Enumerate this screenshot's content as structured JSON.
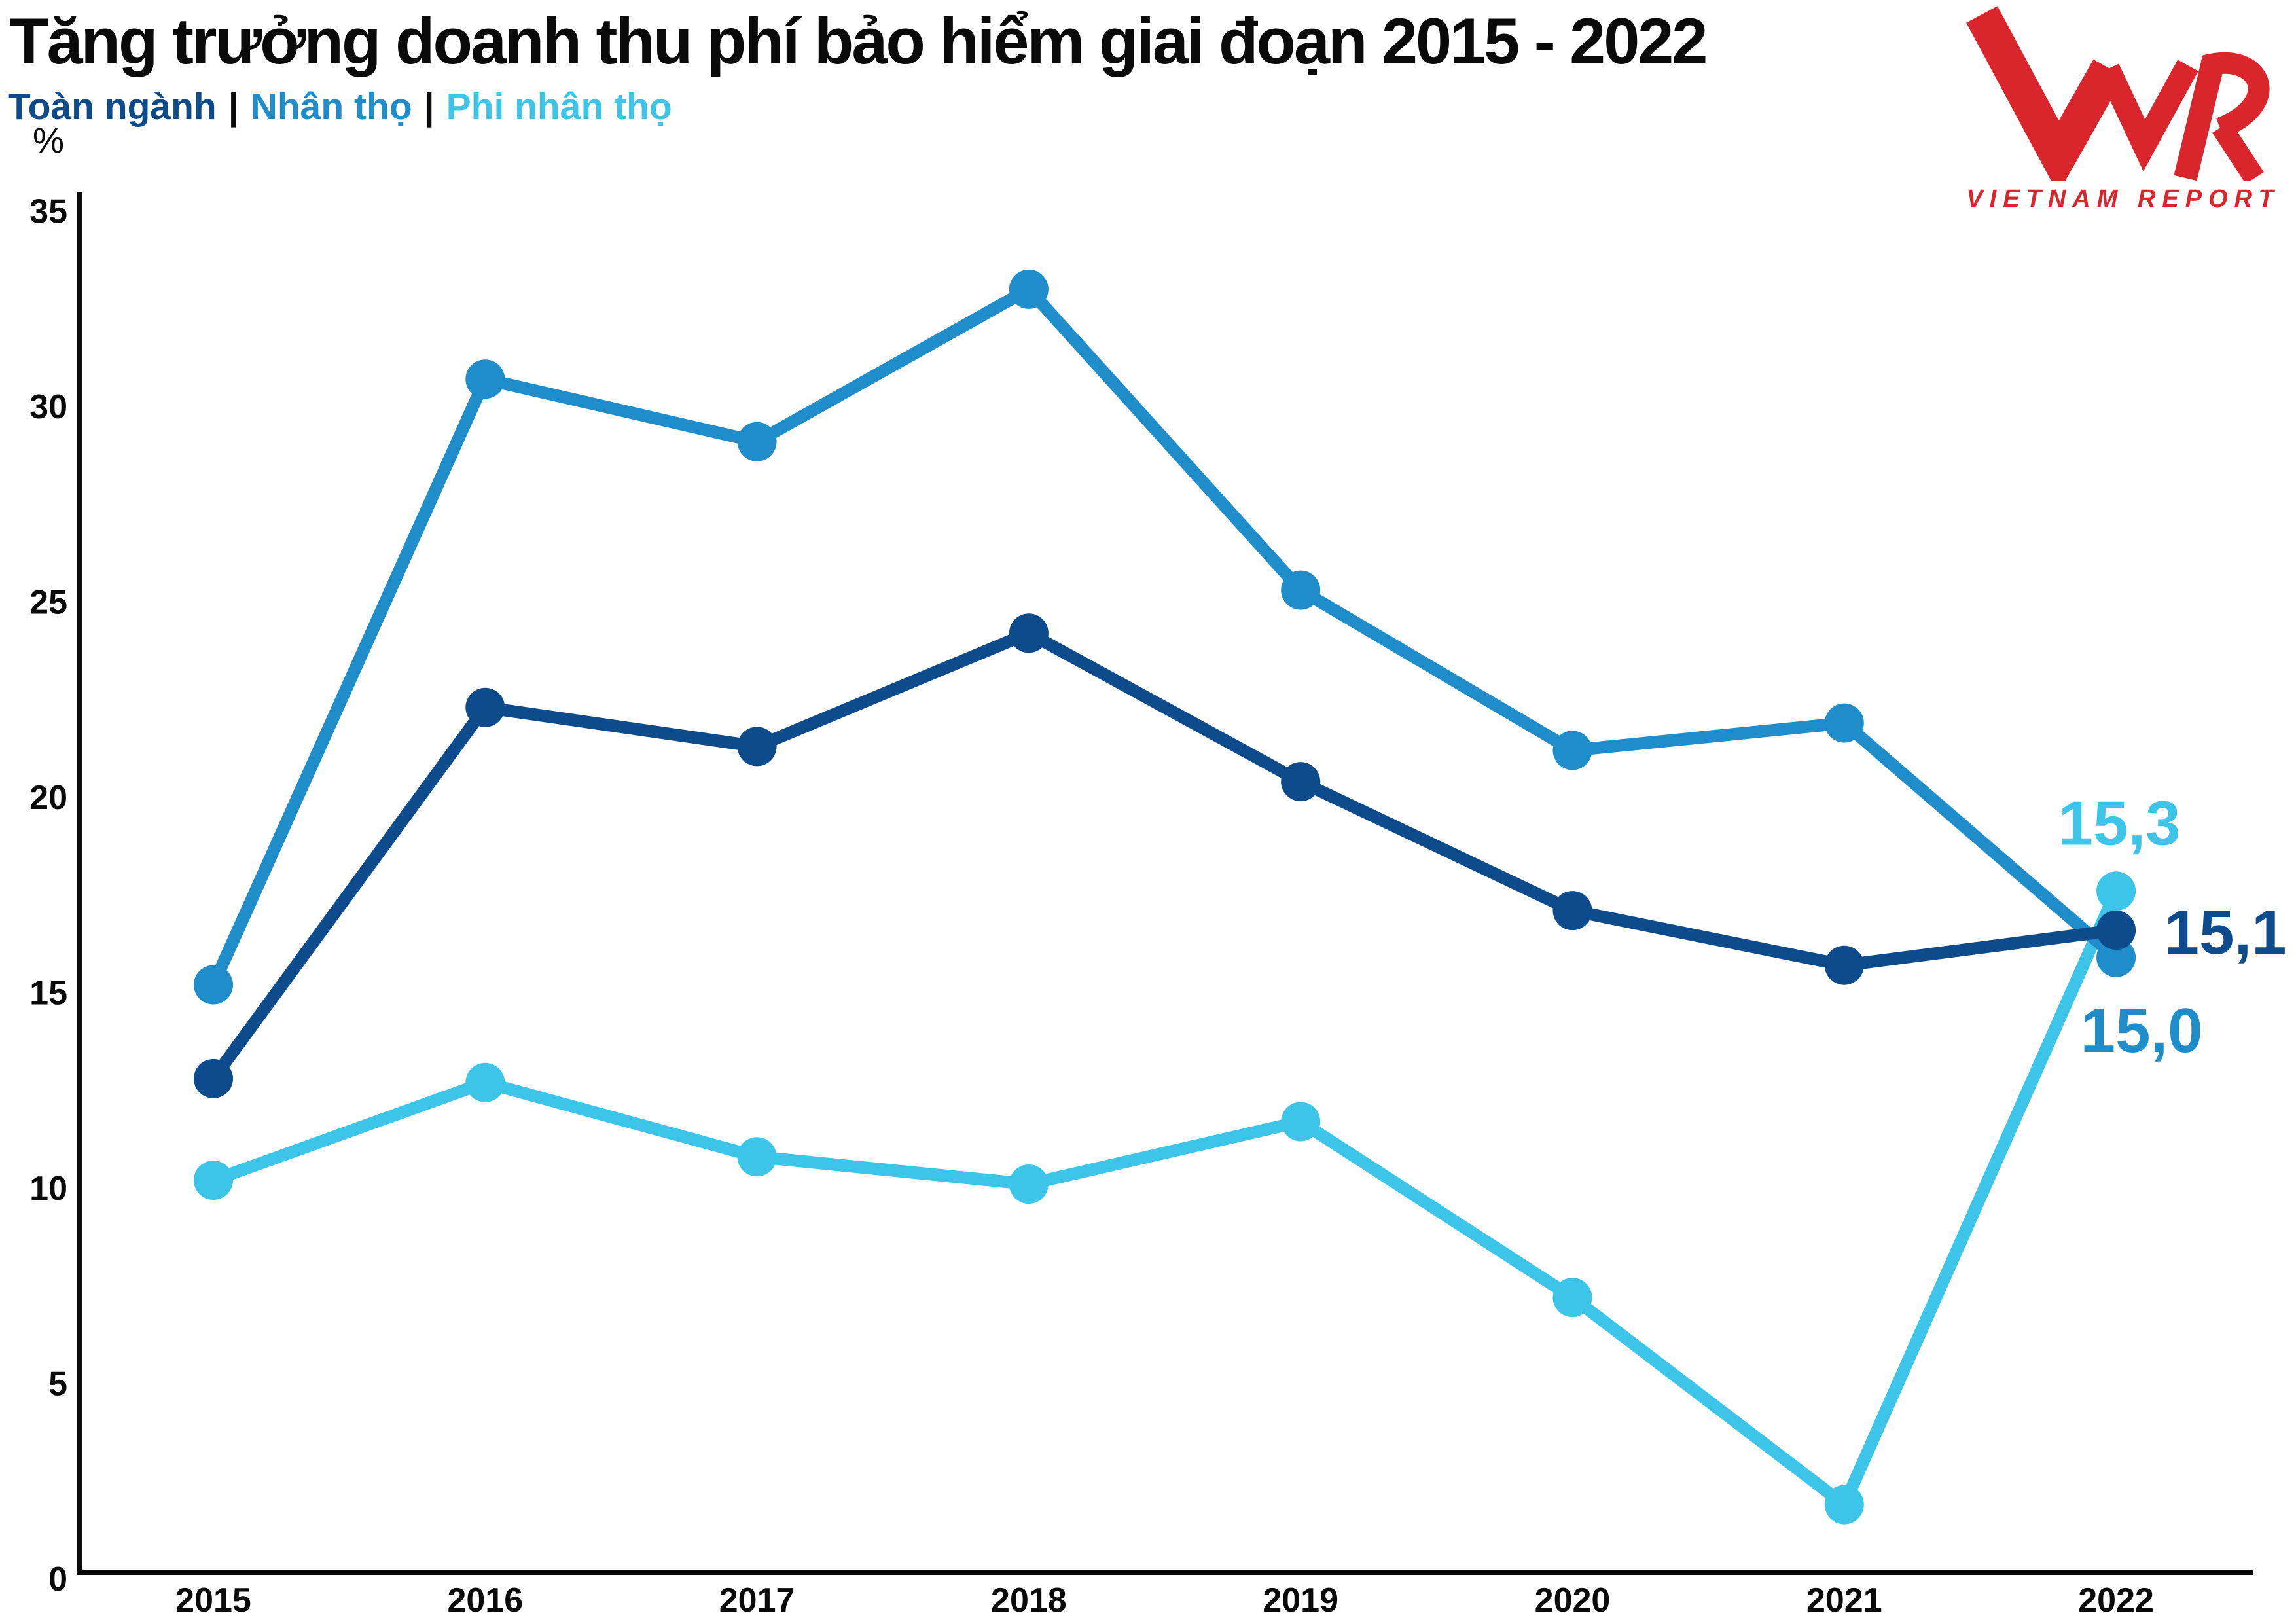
{
  "header": {
    "title": "Tăng trưởng doanh thu phí bảo hiểm giai đoạn 2015 - 2022",
    "legend_separator": "|",
    "unit_label": "%"
  },
  "logo": {
    "monogram": "VNR",
    "wordmark": "VIETNAM REPORT",
    "color": "#d9252b"
  },
  "chart_data": {
    "type": "line",
    "title": "Tăng trưởng doanh thu phí bảo hiểm giai đoạn 2015 - 2022",
    "categories": [
      "2015",
      "2016",
      "2017",
      "2018",
      "2019",
      "2020",
      "2021",
      "2022"
    ],
    "series": [
      {
        "name": "Toàn ngành",
        "color": "#0d4b8c",
        "values": [
          12.8,
          22.3,
          21.3,
          24.2,
          20.4,
          17.1,
          15.7,
          15.1
        ],
        "end_label": {
          "text": "15,1",
          "dx": 167,
          "dy": 2
        },
        "display_value_2022": 16.6
      },
      {
        "name": "Nhân thọ",
        "color": "#1f8dc9",
        "values": [
          15.2,
          30.7,
          29.1,
          33.0,
          25.3,
          21.2,
          21.9,
          15.0
        ],
        "end_label": {
          "text": "15,0",
          "dx": 39,
          "dy": 110
        },
        "display_value_2022": 15.9
      },
      {
        "name": "Phi nhân thọ",
        "color": "#3cc5e8",
        "values": [
          10.2,
          12.7,
          10.8,
          10.1,
          11.7,
          7.2,
          1.9,
          15.3
        ],
        "end_label": {
          "text": "15,3",
          "dx": 5,
          "dy": -105
        },
        "display_value_2022": 17.6
      }
    ],
    "xlabel": "",
    "ylabel": "%",
    "ylim": [
      0,
      35
    ],
    "yticks": [
      0,
      5,
      10,
      15,
      20,
      25,
      30,
      35
    ],
    "grid": false,
    "legend_position": "top-left",
    "axis_color": "#0a0a0b"
  }
}
